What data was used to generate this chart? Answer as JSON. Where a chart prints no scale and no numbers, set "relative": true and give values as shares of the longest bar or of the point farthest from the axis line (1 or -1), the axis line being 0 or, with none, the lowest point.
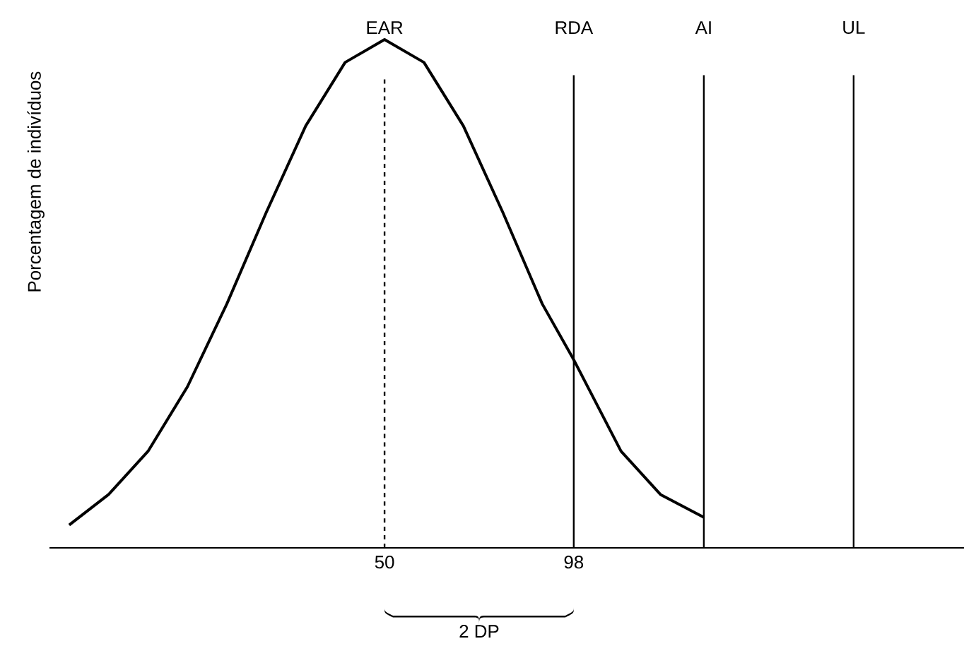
{
  "chart_data": {
    "type": "line",
    "relative": true,
    "ylabel": "Porcentagem de indivíduos",
    "x": [
      -30,
      -20,
      -10,
      0,
      10,
      20,
      30,
      40,
      50,
      60,
      70,
      80,
      90,
      98,
      110,
      120,
      131
    ],
    "series": [
      {
        "color": "#000000",
        "values": [
          0.045,
          0.105,
          0.19,
          0.317,
          0.48,
          0.66,
          0.83,
          0.955,
          1,
          0.955,
          0.83,
          0.66,
          0.48,
          0.37,
          0.19,
          0.105,
          0.06
        ]
      }
    ],
    "xlim": [
      -35,
      197
    ],
    "xticks": [
      50,
      98
    ],
    "ref_lines": [
      {
        "axis": "x",
        "value": 50,
        "label": "EAR",
        "line_style": "dashed",
        "color": "#000000"
      },
      {
        "axis": "x",
        "value": 98,
        "label": "RDA",
        "color": "#000000"
      },
      {
        "axis": "x",
        "value": 131,
        "label": "AI",
        "color": "#000000"
      },
      {
        "axis": "x",
        "value": 169,
        "label": "UL",
        "color": "#000000"
      }
    ],
    "annotations": [
      "2 DP"
    ],
    "grid": false,
    "marker": "none",
    "line_style": "solid"
  }
}
